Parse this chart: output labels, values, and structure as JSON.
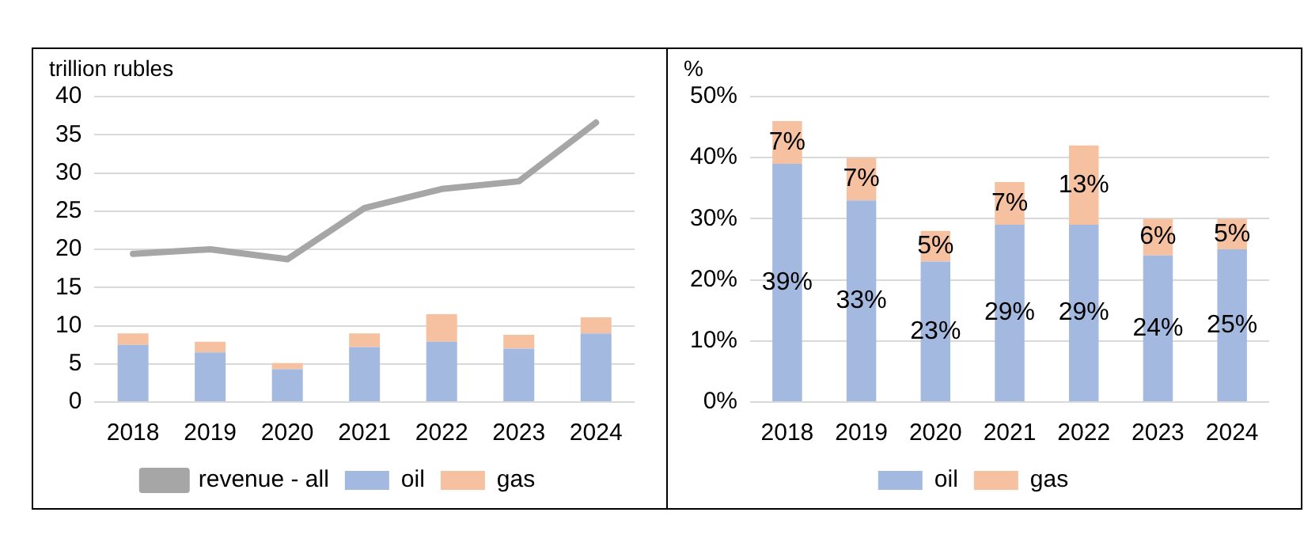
{
  "chart_data": [
    {
      "type": "bar",
      "ylabel": "trillion rubles",
      "categories": [
        "2018",
        "2019",
        "2020",
        "2021",
        "2022",
        "2023",
        "2024"
      ],
      "stacked": true,
      "ylim": [
        0,
        40
      ],
      "yticks": [
        0,
        5,
        10,
        15,
        20,
        25,
        30,
        35,
        40
      ],
      "grid": "y",
      "legend": "bottom",
      "marker": "none",
      "series": [
        {
          "name": "oil",
          "color": "#a3b9e0",
          "values": [
            7.5,
            6.5,
            4.3,
            7.2,
            7.9,
            7.0,
            9.0
          ]
        },
        {
          "name": "gas",
          "color": "#f5c1a0",
          "values": [
            1.5,
            1.4,
            0.8,
            1.8,
            3.6,
            1.8,
            2.1
          ]
        },
        {
          "name": "revenue - all",
          "type": "line",
          "color": "#a6a6a6",
          "values": [
            19.4,
            20.0,
            18.7,
            25.4,
            27.9,
            28.9,
            36.6
          ]
        }
      ]
    },
    {
      "type": "bar",
      "ylabel": "%",
      "categories": [
        "2018",
        "2019",
        "2020",
        "2021",
        "2022",
        "2023",
        "2024"
      ],
      "stacked": true,
      "ylim": [
        0,
        50
      ],
      "yticks": [
        {
          "value": 0,
          "label": "0%"
        },
        {
          "value": 10,
          "label": "10%"
        },
        {
          "value": 20,
          "label": "20%"
        },
        {
          "value": 30,
          "label": "30%"
        },
        {
          "value": 40,
          "label": "40%"
        },
        {
          "value": 50,
          "label": "50%"
        }
      ],
      "grid": "y",
      "legend": "bottom",
      "series": [
        {
          "name": "oil",
          "color": "#a3b9e0",
          "values": [
            39,
            33,
            23,
            29,
            29,
            24,
            25
          ],
          "value_labels": [
            "39%",
            "33%",
            "23%",
            "29%",
            "29%",
            "24%",
            "25%"
          ]
        },
        {
          "name": "gas",
          "color": "#f5c1a0",
          "values": [
            7,
            7,
            5,
            7,
            13,
            6,
            5
          ],
          "value_labels": [
            "7%",
            "7%",
            "5%",
            "7%",
            "13%",
            "6%",
            "5%"
          ]
        }
      ]
    }
  ]
}
